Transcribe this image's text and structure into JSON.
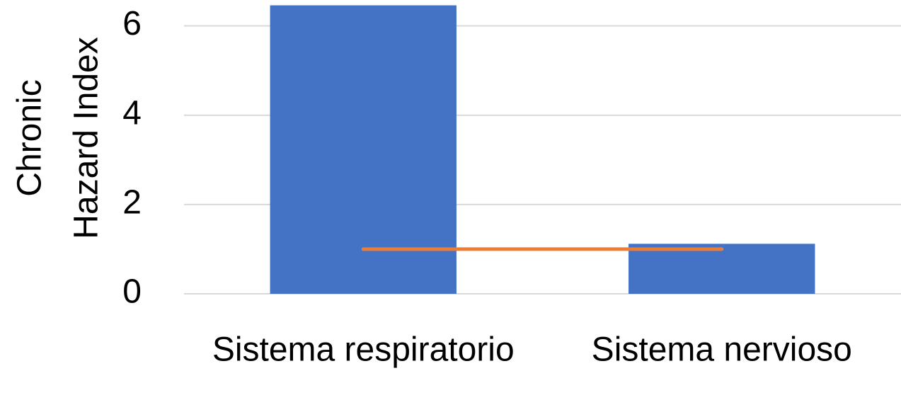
{
  "chart_data": {
    "type": "bar",
    "y_label": [
      "Chronic",
      "Hazard Index"
    ],
    "categories": [
      "Sistema respiratorio",
      "Sistema nervioso"
    ],
    "series": [
      {
        "type": "bar",
        "color": "#4472c4",
        "values": [
          6.46,
          1.12
        ]
      },
      {
        "type": "line",
        "color": "#ed7d31",
        "values": [
          1,
          1
        ]
      }
    ],
    "ylim": [
      0,
      6.5
    ],
    "yticks": [
      0,
      2,
      4,
      6
    ],
    "grid": true
  }
}
